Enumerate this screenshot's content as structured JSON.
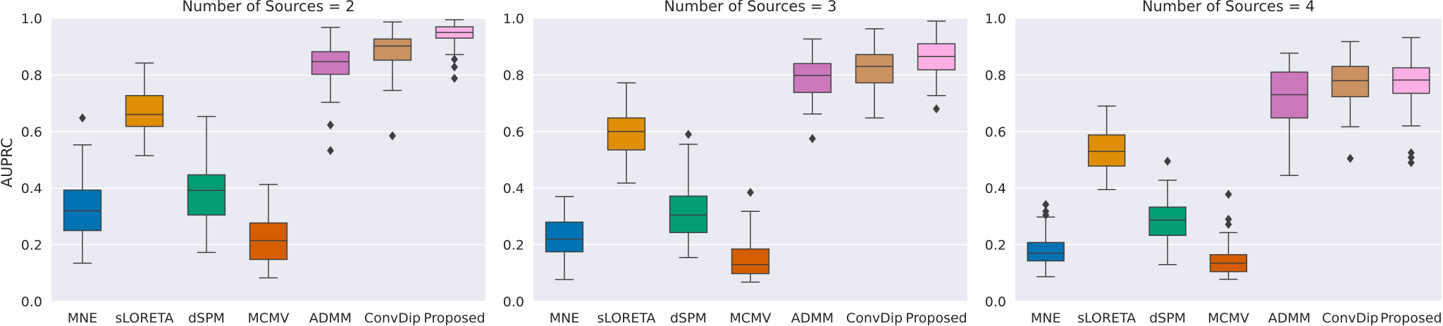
{
  "chart_data": [
    {
      "type": "box",
      "title": "Number of Sources = 2",
      "ylabel": "AUPRC",
      "xlabel": "",
      "ylim": [
        0.0,
        1.0
      ],
      "yticks": [
        "0.0",
        "0.2",
        "0.4",
        "0.6",
        "0.8",
        "1.0"
      ],
      "grid": true,
      "categories": [
        "MNE",
        "sLORETA",
        "dSPM",
        "MCMV",
        "ADMM",
        "ConvDip",
        "Proposed"
      ],
      "boxes": [
        {
          "name": "MNE",
          "color": "#0173b2",
          "whisker_low": 0.135,
          "q1": 0.25,
          "median": 0.32,
          "q3": 0.393,
          "whisker_high": 0.553,
          "outliers": [
            0.648
          ]
        },
        {
          "name": "sLORETA",
          "color": "#de8f05",
          "whisker_low": 0.515,
          "q1": 0.618,
          "median": 0.66,
          "q3": 0.727,
          "whisker_high": 0.842,
          "outliers": []
        },
        {
          "name": "dSPM",
          "color": "#029e73",
          "whisker_low": 0.173,
          "q1": 0.305,
          "median": 0.392,
          "q3": 0.447,
          "whisker_high": 0.653,
          "outliers": []
        },
        {
          "name": "MCMV",
          "color": "#d55e00",
          "whisker_low": 0.083,
          "q1": 0.148,
          "median": 0.215,
          "q3": 0.277,
          "whisker_high": 0.413,
          "outliers": []
        },
        {
          "name": "ADMM",
          "color": "#cc78bc",
          "whisker_low": 0.703,
          "q1": 0.802,
          "median": 0.847,
          "q3": 0.882,
          "whisker_high": 0.968,
          "outliers": [
            0.623,
            0.533
          ]
        },
        {
          "name": "ConvDip",
          "color": "#ca9161",
          "whisker_low": 0.745,
          "q1": 0.852,
          "median": 0.902,
          "q3": 0.927,
          "whisker_high": 0.987,
          "outliers": [
            0.585
          ]
        },
        {
          "name": "Proposed",
          "color": "#fbafe4",
          "whisker_low": 0.872,
          "q1": 0.93,
          "median": 0.95,
          "q3": 0.97,
          "whisker_high": 0.995,
          "outliers": [
            0.855,
            0.828,
            0.788
          ]
        }
      ]
    },
    {
      "type": "box",
      "title": "Number of Sources = 3",
      "ylabel": "",
      "xlabel": "",
      "ylim": [
        0.0,
        1.0
      ],
      "yticks": [
        "0.0",
        "0.2",
        "0.4",
        "0.6",
        "0.8",
        "1.0"
      ],
      "grid": true,
      "categories": [
        "MNE",
        "sLORETA",
        "dSPM",
        "MCMV",
        "ADMM",
        "ConvDip",
        "Proposed"
      ],
      "boxes": [
        {
          "name": "MNE",
          "color": "#0173b2",
          "whisker_low": 0.077,
          "q1": 0.175,
          "median": 0.22,
          "q3": 0.28,
          "whisker_high": 0.37,
          "outliers": []
        },
        {
          "name": "sLORETA",
          "color": "#de8f05",
          "whisker_low": 0.418,
          "q1": 0.535,
          "median": 0.6,
          "q3": 0.648,
          "whisker_high": 0.772,
          "outliers": []
        },
        {
          "name": "dSPM",
          "color": "#029e73",
          "whisker_low": 0.155,
          "q1": 0.243,
          "median": 0.305,
          "q3": 0.372,
          "whisker_high": 0.555,
          "outliers": [
            0.59
          ]
        },
        {
          "name": "MCMV",
          "color": "#d55e00",
          "whisker_low": 0.068,
          "q1": 0.098,
          "median": 0.13,
          "q3": 0.185,
          "whisker_high": 0.318,
          "outliers": [
            0.385
          ]
        },
        {
          "name": "ADMM",
          "color": "#cc78bc",
          "whisker_low": 0.662,
          "q1": 0.738,
          "median": 0.798,
          "q3": 0.84,
          "whisker_high": 0.927,
          "outliers": [
            0.575
          ]
        },
        {
          "name": "ConvDip",
          "color": "#ca9161",
          "whisker_low": 0.648,
          "q1": 0.772,
          "median": 0.83,
          "q3": 0.872,
          "whisker_high": 0.963,
          "outliers": []
        },
        {
          "name": "Proposed",
          "color": "#fbafe4",
          "whisker_low": 0.727,
          "q1": 0.818,
          "median": 0.865,
          "q3": 0.91,
          "whisker_high": 0.99,
          "outliers": [
            0.68
          ]
        }
      ]
    },
    {
      "type": "box",
      "title": "Number of Sources = 4",
      "ylabel": "",
      "xlabel": "",
      "ylim": [
        0.0,
        1.0
      ],
      "yticks": [
        "0.0",
        "0.2",
        "0.4",
        "0.6",
        "0.8",
        "1.0"
      ],
      "grid": true,
      "categories": [
        "MNE",
        "sLORETA",
        "dSPM",
        "MCMV",
        "ADMM",
        "ConvDip",
        "Proposed"
      ],
      "boxes": [
        {
          "name": "MNE",
          "color": "#0173b2",
          "whisker_low": 0.087,
          "q1": 0.143,
          "median": 0.17,
          "q3": 0.208,
          "whisker_high": 0.298,
          "outliers": [
            0.342,
            0.318,
            0.305
          ]
        },
        {
          "name": "sLORETA",
          "color": "#de8f05",
          "whisker_low": 0.395,
          "q1": 0.478,
          "median": 0.53,
          "q3": 0.588,
          "whisker_high": 0.69,
          "outliers": []
        },
        {
          "name": "dSPM",
          "color": "#029e73",
          "whisker_low": 0.13,
          "q1": 0.233,
          "median": 0.287,
          "q3": 0.333,
          "whisker_high": 0.428,
          "outliers": [
            0.495
          ]
        },
        {
          "name": "MCMV",
          "color": "#d55e00",
          "whisker_low": 0.078,
          "q1": 0.105,
          "median": 0.135,
          "q3": 0.165,
          "whisker_high": 0.243,
          "outliers": [
            0.378,
            0.29,
            0.272
          ]
        },
        {
          "name": "ADMM",
          "color": "#cc78bc",
          "whisker_low": 0.445,
          "q1": 0.648,
          "median": 0.73,
          "q3": 0.81,
          "whisker_high": 0.877,
          "outliers": []
        },
        {
          "name": "ConvDip",
          "color": "#ca9161",
          "whisker_low": 0.617,
          "q1": 0.723,
          "median": 0.78,
          "q3": 0.83,
          "whisker_high": 0.918,
          "outliers": [
            0.505
          ]
        },
        {
          "name": "Proposed",
          "color": "#fbafe4",
          "whisker_low": 0.62,
          "q1": 0.735,
          "median": 0.782,
          "q3": 0.825,
          "whisker_high": 0.932,
          "outliers": [
            0.525,
            0.508,
            0.49
          ]
        }
      ]
    }
  ]
}
